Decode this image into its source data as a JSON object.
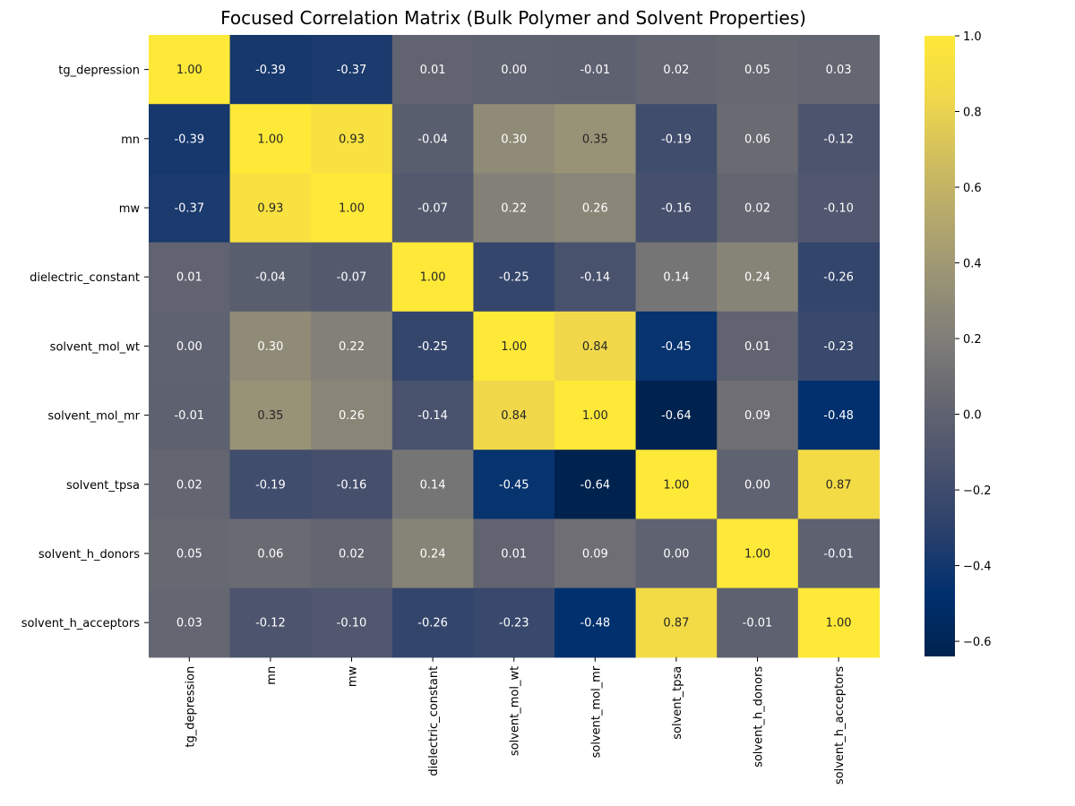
{
  "chart_data": {
    "type": "heatmap",
    "title": "Focused Correlation Matrix (Bulk Polymer and Solvent Properties)",
    "row_labels": [
      "tg_depression",
      "mn",
      "mw",
      "dielectric_constant",
      "solvent_mol_wt",
      "solvent_mol_mr",
      "solvent_tpsa",
      "solvent_h_donors",
      "solvent_h_acceptors"
    ],
    "col_labels": [
      "tg_depression",
      "mn",
      "mw",
      "dielectric_constant",
      "solvent_mol_wt",
      "solvent_mol_mr",
      "solvent_tpsa",
      "solvent_h_donors",
      "solvent_h_acceptors"
    ],
    "values": [
      [
        1.0,
        -0.39,
        -0.37,
        0.01,
        0.0,
        -0.01,
        0.02,
        0.05,
        0.03
      ],
      [
        -0.39,
        1.0,
        0.93,
        -0.04,
        0.3,
        0.35,
        -0.19,
        0.06,
        -0.12
      ],
      [
        -0.37,
        0.93,
        1.0,
        -0.07,
        0.22,
        0.26,
        -0.16,
        0.02,
        -0.1
      ],
      [
        0.01,
        -0.04,
        -0.07,
        1.0,
        -0.25,
        -0.14,
        0.14,
        0.24,
        -0.26
      ],
      [
        0.0,
        0.3,
        0.22,
        -0.25,
        1.0,
        0.84,
        -0.45,
        0.01,
        -0.23
      ],
      [
        -0.01,
        0.35,
        0.26,
        -0.14,
        0.84,
        1.0,
        -0.64,
        0.09,
        -0.48
      ],
      [
        0.02,
        -0.19,
        -0.16,
        0.14,
        -0.45,
        -0.64,
        1.0,
        0.0,
        0.87
      ],
      [
        0.05,
        0.06,
        0.02,
        0.24,
        0.01,
        0.09,
        0.0,
        1.0,
        -0.01
      ],
      [
        0.03,
        -0.12,
        -0.1,
        -0.26,
        -0.23,
        -0.48,
        0.87,
        -0.01,
        1.0
      ]
    ],
    "colormap": "cividis",
    "vmin": -0.64,
    "vmax": 1.0,
    "colorbar_ticks": [
      1.0,
      0.8,
      0.6,
      0.4,
      0.2,
      0.0,
      -0.2,
      -0.4,
      -0.6
    ],
    "colorbar_tick_labels": [
      "1.0",
      "0.8",
      "0.6",
      "0.4",
      "0.2",
      "0.0",
      "−0.2",
      "−0.4",
      "−0.6"
    ],
    "annotation_format": "2 decimals"
  }
}
